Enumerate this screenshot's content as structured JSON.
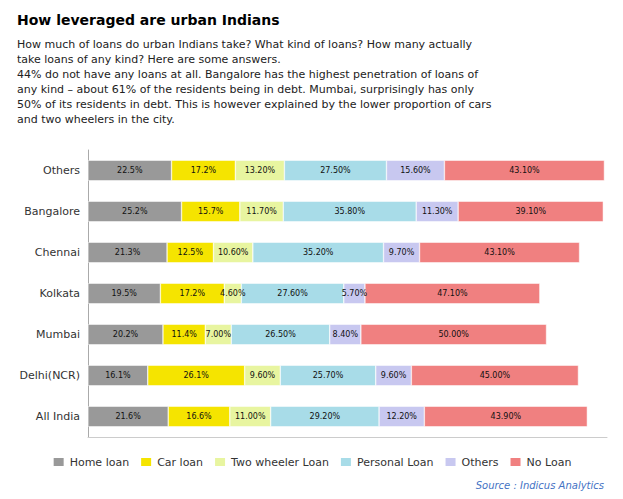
{
  "chart_data": {
    "type": "bar",
    "orientation": "horizontal",
    "stacked": true,
    "title": "How leveraged are urban Indians",
    "subtitle": "How much of loans do urban Indians take? What kind of loans? How many actually\ntake loans of any kind? Here are some answers.\n44% do not have any loans at all. Bangalore has the highest penetration of loans of\nany kind – about 61% of the residents being in debt. Mumbai, surprisingly has only\n50% of its residents in debt. This is however explained by the lower proportion of cars\nand two wheelers in the city.",
    "annotations": [
      "Source : Indicus Analytics"
    ],
    "categories": [
      "Others",
      "Bangalore",
      "Chennai",
      "Kolkata",
      "Mumbai",
      "Delhi(NCR)",
      "All India"
    ],
    "series": [
      {
        "name": "Home loan",
        "color": "#999999",
        "values": [
          22.5,
          25.2,
          21.3,
          19.5,
          20.2,
          16.1,
          21.6
        ],
        "value_labels": [
          "22.5%",
          "25.2%",
          "21.3%",
          "19.5%",
          "20.2%",
          "16.1%",
          "21.6%"
        ]
      },
      {
        "name": "Car loan",
        "color": "#f5e400",
        "values": [
          17.2,
          15.7,
          12.5,
          17.2,
          11.4,
          26.1,
          16.6
        ],
        "value_labels": [
          "17.2%",
          "15.7%",
          "12.5%",
          "17.2%",
          "11.4%",
          "26.1%",
          "16.6%"
        ]
      },
      {
        "name": "Two wheeler Loan",
        "color": "#e8f5a0",
        "values": [
          13.2,
          11.7,
          10.6,
          4.6,
          7.0,
          9.6,
          11.0
        ],
        "value_labels": [
          "13.20%",
          "11.70%",
          "10.60%",
          "4.60%",
          "7.00%",
          "9.60%",
          "11.00%"
        ]
      },
      {
        "name": "Personal Loan",
        "color": "#a8dce8",
        "values": [
          27.5,
          35.8,
          35.2,
          27.6,
          26.5,
          25.7,
          29.2
        ],
        "value_labels": [
          "27.50%",
          "35.80%",
          "35.20%",
          "27.60%",
          "26.50%",
          "25.70%",
          "29.20%"
        ]
      },
      {
        "name": "Others",
        "color": "#c8c8f0",
        "values": [
          15.6,
          11.3,
          9.7,
          5.7,
          8.4,
          9.6,
          12.2
        ],
        "value_labels": [
          "15.60%",
          "11.30%",
          "9.70%",
          "5.70%",
          "8.40%",
          "9.60%",
          "12.20%"
        ]
      },
      {
        "name": "No Loan",
        "color": "#f08080",
        "values": [
          43.1,
          39.1,
          43.1,
          47.1,
          50.0,
          45.0,
          43.9
        ],
        "value_labels": [
          "43.10%",
          "39.10%",
          "43.10%",
          "47.10%",
          "50.00%",
          "45.00%",
          "43.90%"
        ]
      }
    ],
    "xlim": [
      0,
      139.7955
    ],
    "tick_labels": "y",
    "grid": false,
    "legend": "bottom",
    "data_labels": true
  }
}
